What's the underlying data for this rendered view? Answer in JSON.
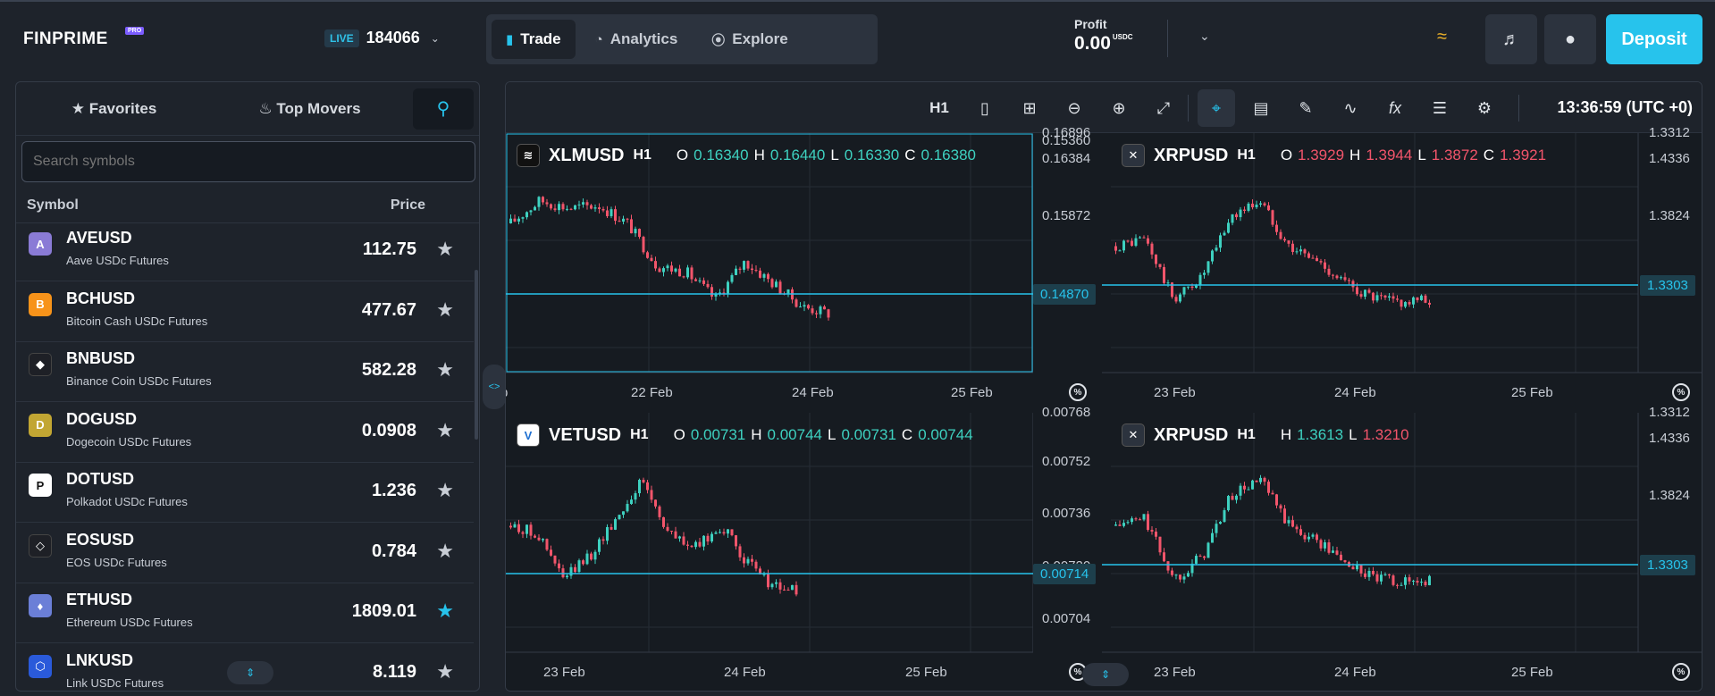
{
  "header": {
    "logo": "FINPRIME",
    "logo_badge": "PRO",
    "account_mode": "LIVE",
    "account_number": "184066",
    "nav": [
      {
        "label": "Trade",
        "icon": "bar-chart-icon"
      },
      {
        "label": "Analytics",
        "icon": "pie-chart-icon"
      },
      {
        "label": "Explore",
        "icon": "compass-icon"
      }
    ],
    "profit_label": "Profit",
    "profit_value": "0.00",
    "profit_currency": "USDC",
    "deposit_label": "Deposit"
  },
  "sidebar": {
    "tabs": [
      {
        "label": "Favorites",
        "icon": "star-icon"
      },
      {
        "label": "Top Movers",
        "icon": "flame-icon"
      }
    ],
    "search_placeholder": "Search symbols",
    "col_symbol": "Symbol",
    "col_price": "Price",
    "rows": [
      {
        "symbol": "AVEUSD",
        "desc": "Aave USDc Futures",
        "price": "112.75",
        "color": "#8a7bd6",
        "glyph": "A",
        "fav": false
      },
      {
        "symbol": "BCHUSD",
        "desc": "Bitcoin Cash USDc Futures",
        "price": "477.67",
        "color": "#f7931a",
        "glyph": "B",
        "fav": false
      },
      {
        "symbol": "BNBUSD",
        "desc": "Binance Coin USDc Futures",
        "price": "582.28",
        "color": "#1e2026",
        "glyph": "◆",
        "fav": false
      },
      {
        "symbol": "DOGUSD",
        "desc": "Dogecoin USDc Futures",
        "price": "0.0908",
        "color": "#c2a633",
        "glyph": "D",
        "fav": false
      },
      {
        "symbol": "DOTUSD",
        "desc": "Polkadot USDc Futures",
        "price": "1.236",
        "color": "#ffffff",
        "glyph": "P",
        "fav": false
      },
      {
        "symbol": "EOSUSD",
        "desc": "EOS USDc Futures",
        "price": "0.784",
        "color": "#1e2026",
        "glyph": "◇",
        "fav": false
      },
      {
        "symbol": "ETHUSD",
        "desc": "Ethereum USDc Futures",
        "price": "1809.01",
        "color": "#6b7fd7",
        "glyph": "♦",
        "fav": true
      },
      {
        "symbol": "LNKUSD",
        "desc": "Link USDc Futures",
        "price": "8.119",
        "color": "#2a5ada",
        "glyph": "⬡",
        "fav": false
      }
    ]
  },
  "toolbar": {
    "timeframe": "H1",
    "clock": "13:36:59 (UTC +0)"
  },
  "panes": [
    {
      "symbol": "XLMUSD",
      "tf": "H1",
      "ohlc": [
        {
          "k": "O",
          "v": "0.16340"
        },
        {
          "k": "H",
          "v": "0.16440"
        },
        {
          "k": "L",
          "v": "0.16330"
        },
        {
          "k": "C",
          "v": "0.16380"
        }
      ],
      "tone": "up",
      "yticks": [
        "0.16384",
        "0.15872",
        "0.15360"
      ],
      "ycut": "0.16896",
      "price_tag": "0.14870",
      "xticks": [
        "22 Feb",
        "24 Feb",
        "25 Feb"
      ],
      "xcut": "b"
    },
    {
      "symbol": "XRPUSD",
      "tf": "H1",
      "ohlc": [
        {
          "k": "O",
          "v": "1.3929"
        },
        {
          "k": "H",
          "v": "1.3944"
        },
        {
          "k": "L",
          "v": "1.3872"
        },
        {
          "k": "C",
          "v": "1.3921"
        }
      ],
      "tone": "dn",
      "yticks": [
        "1.4336",
        "1.3824"
      ],
      "ycut": "1.3312",
      "price_tag": "1.3303",
      "xticks": [
        "23 Feb",
        "24 Feb",
        "25 Feb"
      ]
    },
    {
      "symbol": "VETUSD",
      "tf": "H1",
      "ohlc": [
        {
          "k": "O",
          "v": "0.00731"
        },
        {
          "k": "H",
          "v": "0.00744"
        },
        {
          "k": "L",
          "v": "0.00731"
        },
        {
          "k": "C",
          "v": "0.00744"
        }
      ],
      "tone": "up",
      "yticks": [
        "0.00752",
        "0.00736",
        "0.00720",
        "0.00704"
      ],
      "ycut": "0.00768",
      "price_tag": "0.00714",
      "xticks": [
        "23 Feb",
        "24 Feb",
        "25 Feb"
      ]
    },
    {
      "symbol": "XRPUSD",
      "tf": "H1",
      "ohlc": [
        {
          "k": "H",
          "v": "1.3613"
        },
        {
          "k": "L",
          "v": "1.3210"
        }
      ],
      "tone": "mixed",
      "yticks": [
        "1.4336",
        "1.3824"
      ],
      "ycut": "1.3312",
      "price_tag": "1.3303",
      "xticks": [
        "23 Feb",
        "24 Feb",
        "25 Feb"
      ]
    }
  ],
  "colors": {
    "accent": "#27c3ec",
    "up": "#3ed1c0",
    "down": "#f2556b"
  }
}
